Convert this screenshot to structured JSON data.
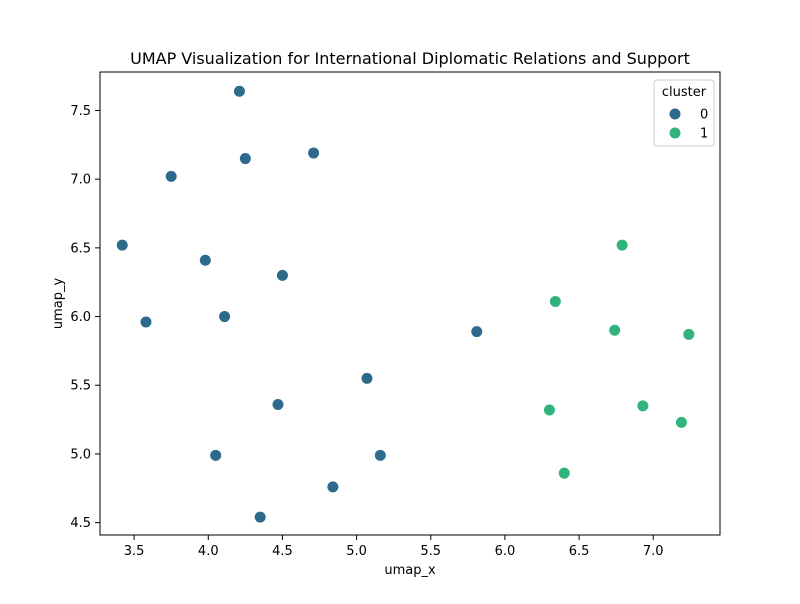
{
  "chart_data": {
    "type": "scatter",
    "title": "UMAP Visualization for International Diplomatic Relations and Support",
    "xlabel": "umap_x",
    "ylabel": "umap_y",
    "xlim": [
      3.27,
      7.45
    ],
    "ylim": [
      4.41,
      7.78
    ],
    "xticks": [
      "3.5",
      "4.0",
      "4.5",
      "5.0",
      "5.5",
      "6.0",
      "6.5",
      "7.0"
    ],
    "yticks": [
      "4.5",
      "5.0",
      "5.5",
      "6.0",
      "6.5",
      "7.0",
      "7.5"
    ],
    "grid": false,
    "legend": {
      "title": "cluster",
      "placement": "top-right",
      "entries": [
        "0",
        "1"
      ]
    },
    "series": [
      {
        "name": "0",
        "color": "#2d6a8c",
        "points": [
          [
            4.21,
            7.64
          ],
          [
            4.25,
            7.15
          ],
          [
            4.71,
            7.19
          ],
          [
            3.75,
            7.02
          ],
          [
            3.42,
            6.52
          ],
          [
            3.98,
            6.41
          ],
          [
            4.5,
            6.3
          ],
          [
            3.58,
            5.96
          ],
          [
            4.11,
            6.0
          ],
          [
            5.81,
            5.89
          ],
          [
            5.07,
            5.55
          ],
          [
            4.47,
            5.36
          ],
          [
            4.05,
            4.99
          ],
          [
            5.16,
            4.99
          ],
          [
            4.84,
            4.76
          ],
          [
            4.35,
            4.54
          ]
        ]
      },
      {
        "name": "1",
        "color": "#31b47b",
        "points": [
          [
            6.79,
            6.52
          ],
          [
            6.34,
            6.11
          ],
          [
            6.74,
            5.9
          ],
          [
            7.24,
            5.87
          ],
          [
            6.3,
            5.32
          ],
          [
            6.93,
            5.35
          ],
          [
            7.19,
            5.23
          ],
          [
            6.4,
            4.86
          ]
        ]
      }
    ]
  }
}
